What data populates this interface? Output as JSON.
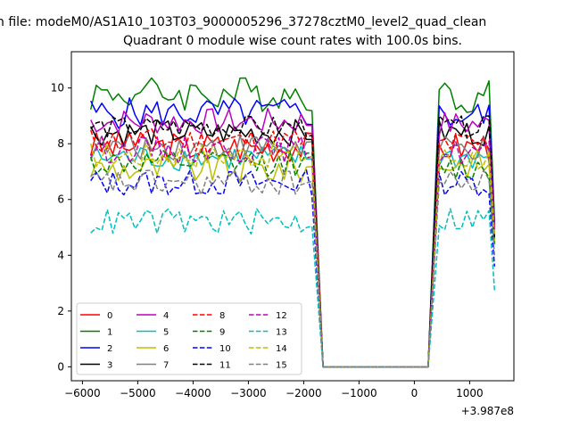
{
  "figure": {
    "suptitle": "n file: modeM0/AS1A10_103T03_9000005296_37278cztM0_level2_quad_clean",
    "title": "Quadrant 0 module wise count rates with 100.0s bins."
  },
  "chart_data": {
    "type": "line",
    "title": "Quadrant 0 module wise count rates with 100.0s bins.",
    "xlabel": "",
    "ylabel": "",
    "x_offset_label": "+3.987e8",
    "xlim": [
      -6200,
      1800
    ],
    "ylim": [
      -0.5,
      11.3
    ],
    "xticks": [
      -6000,
      -5000,
      -4000,
      -3000,
      -2000,
      -1000,
      0,
      1000
    ],
    "xtick_labels": [
      "−6000",
      "−5000",
      "−4000",
      "−3000",
      "−2000",
      "−1000",
      "0",
      "1000"
    ],
    "yticks": [
      0,
      2,
      4,
      6,
      8,
      10
    ],
    "ytick_labels": [
      "0",
      "2",
      "4",
      "6",
      "8",
      "10"
    ],
    "grid": false,
    "legend_position": "lower-left",
    "legend_columns": 4,
    "segments": [
      {
        "name": "before-gap",
        "x_start": -5850,
        "x_end": -1850,
        "step": 100
      },
      {
        "name": "after-gap",
        "x_start": 450,
        "x_end": 1350,
        "step": 100
      }
    ],
    "gap_points": [
      [
        -1650,
        0
      ],
      [
        -1550,
        0
      ],
      [
        250,
        0
      ]
    ],
    "final_x": 1450,
    "series": [
      {
        "name": "0",
        "color": "#ff0000",
        "dash": "solid",
        "mean": 7.9,
        "amp": 0.35,
        "after_mean": 7.9,
        "final": 5.0
      },
      {
        "name": "1",
        "color": "#008000",
        "dash": "solid",
        "mean": 9.8,
        "amp": 0.4,
        "after_mean": 9.7,
        "final": 5.2
      },
      {
        "name": "2",
        "color": "#0000ff",
        "dash": "solid",
        "mean": 9.1,
        "amp": 0.35,
        "after_mean": 9.0,
        "final": 5.1
      },
      {
        "name": "3",
        "color": "#000000",
        "dash": "solid",
        "mean": 8.4,
        "amp": 0.3,
        "after_mean": 8.4,
        "final": 5.0
      },
      {
        "name": "4",
        "color": "#bf00bf",
        "dash": "solid",
        "mean": 8.8,
        "amp": 0.3,
        "after_mean": 8.7,
        "final": 5.0
      },
      {
        "name": "5",
        "color": "#00bfbf",
        "dash": "solid",
        "mean": 7.5,
        "amp": 0.3,
        "after_mean": 7.5,
        "final": 4.6
      },
      {
        "name": "6",
        "color": "#bfbf00",
        "dash": "solid",
        "mean": 7.1,
        "amp": 0.35,
        "after_mean": 7.3,
        "final": 4.5
      },
      {
        "name": "7",
        "color": "#808080",
        "dash": "solid",
        "mean": 7.9,
        "amp": 0.3,
        "after_mean": 7.8,
        "final": 4.8
      },
      {
        "name": "8",
        "color": "#ff0000",
        "dash": "dashed",
        "mean": 8.1,
        "amp": 0.3,
        "after_mean": 8.0,
        "final": 4.9
      },
      {
        "name": "9",
        "color": "#008000",
        "dash": "dashed",
        "mean": 7.3,
        "amp": 0.3,
        "after_mean": 7.1,
        "final": 4.4
      },
      {
        "name": "10",
        "color": "#0000ff",
        "dash": "dashed",
        "mean": 6.6,
        "amp": 0.3,
        "after_mean": 6.6,
        "final": 3.6
      },
      {
        "name": "11",
        "color": "#000000",
        "dash": "dashed",
        "mean": 8.6,
        "amp": 0.25,
        "after_mean": 8.6,
        "final": 4.6
      },
      {
        "name": "12",
        "color": "#bf00bf",
        "dash": "dashed",
        "mean": 7.8,
        "amp": 0.3,
        "after_mean": 7.7,
        "final": 4.8
      },
      {
        "name": "13",
        "color": "#00bfbf",
        "dash": "dashed",
        "mean": 5.2,
        "amp": 0.3,
        "after_mean": 5.3,
        "final": 2.75
      },
      {
        "name": "14",
        "color": "#bfbf00",
        "dash": "dashed",
        "mean": 7.6,
        "amp": 0.3,
        "after_mean": 7.5,
        "final": 4.7
      },
      {
        "name": "15",
        "color": "#808080",
        "dash": "dashed",
        "mean": 6.6,
        "amp": 0.3,
        "after_mean": 6.6,
        "final": 4.0
      }
    ]
  }
}
